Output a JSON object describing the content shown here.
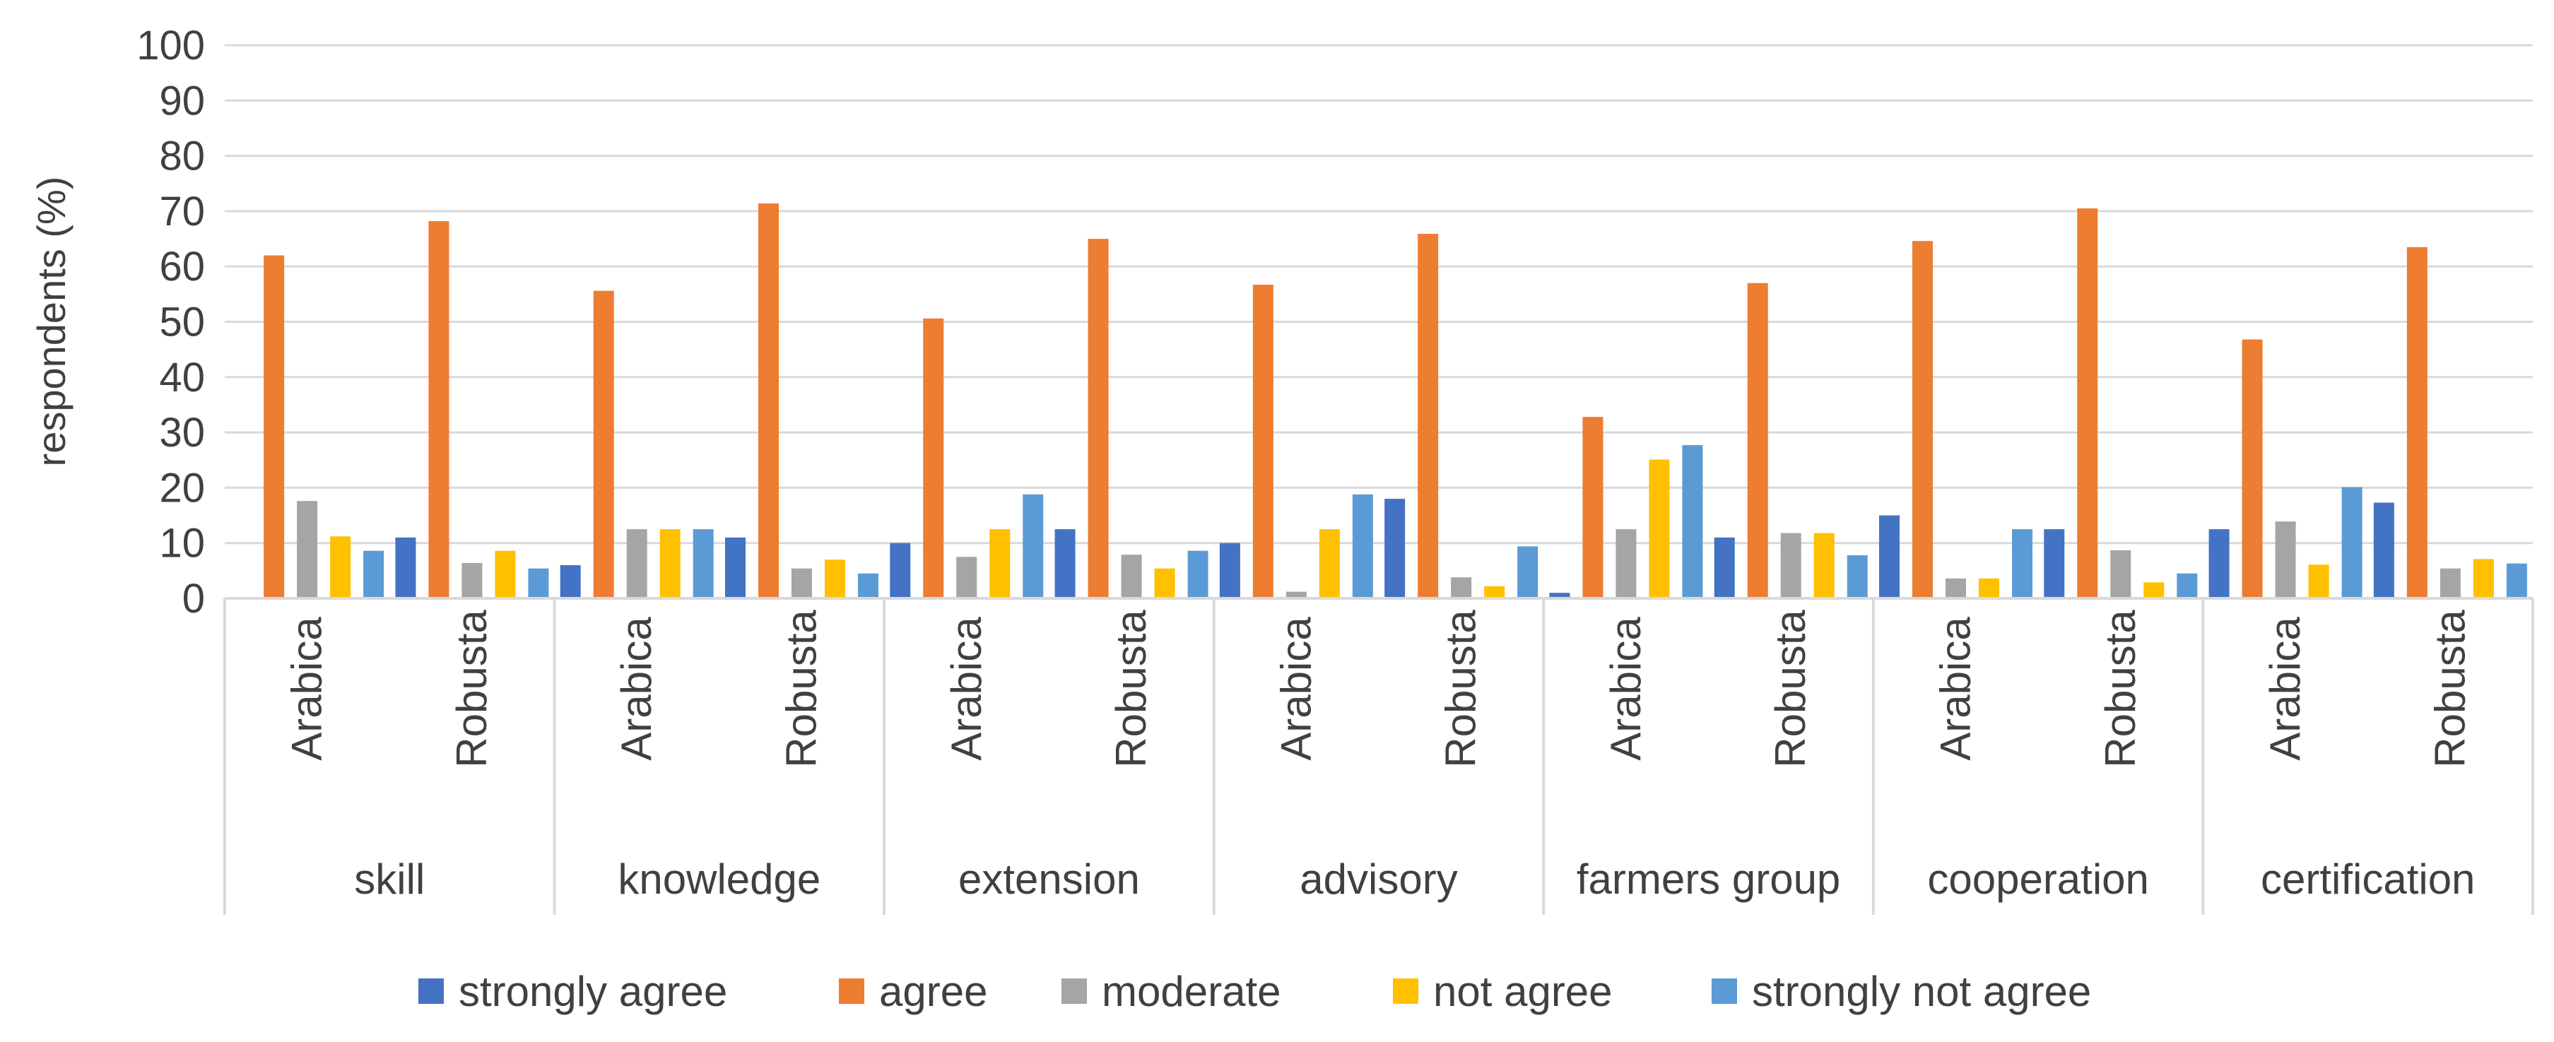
{
  "chart_data": {
    "type": "bar",
    "title": "",
    "xlabel": "",
    "ylabel": "respondents (%)",
    "ylim": [
      0,
      100
    ],
    "yticks": [
      0,
      10,
      20,
      30,
      40,
      50,
      60,
      70,
      80,
      90,
      100
    ],
    "grid": true,
    "legend_position": "bottom",
    "groups": [
      "skill",
      "knowledge",
      "extension",
      "advisory",
      "farmers group",
      "cooperation",
      "certification"
    ],
    "subcategories": [
      "Arabica",
      "Robusta"
    ],
    "categories": [
      "skill Arabica",
      "skill Robusta",
      "knowledge Arabica",
      "knowledge Robusta",
      "extension Arabica",
      "extension Robusta",
      "advisory Arabica",
      "advisory Robusta",
      "farmers group Arabica",
      "farmers group Robusta",
      "cooperation Arabica",
      "cooperation Robusta",
      "certification Arabica",
      "certification Robusta"
    ],
    "series": [
      {
        "name": "strongly agree",
        "color": "#4472c4",
        "values": [
          0,
          11,
          6,
          11,
          10,
          12.5,
          10,
          18,
          1,
          11,
          15,
          12.5,
          12.5,
          17.3
        ]
      },
      {
        "name": "agree",
        "color": "#ed7d31",
        "values": [
          62,
          68.2,
          55.6,
          71.4,
          50.6,
          65,
          56.7,
          65.9,
          32.8,
          57,
          64.6,
          70.5,
          46.8,
          63.5
        ]
      },
      {
        "name": "moderate",
        "color": "#a5a5a5",
        "values": [
          17.6,
          6.4,
          12.5,
          5.4,
          7.5,
          7.9,
          1.2,
          3.8,
          12.5,
          11.8,
          3.6,
          8.7,
          13.9,
          5.4
        ]
      },
      {
        "name": "not agree",
        "color": "#ffc000",
        "values": [
          11.2,
          8.6,
          12.5,
          7,
          12.5,
          5.4,
          12.5,
          2.2,
          25.1,
          11.8,
          3.6,
          2.9,
          6.1,
          7.1
        ]
      },
      {
        "name": "strongly not agree",
        "color": "#5b9bd5",
        "values": [
          8.6,
          5.4,
          12.5,
          4.5,
          18.8,
          8.6,
          18.8,
          9.4,
          27.7,
          7.8,
          12.5,
          4.5,
          20.1,
          6.3
        ]
      }
    ]
  }
}
